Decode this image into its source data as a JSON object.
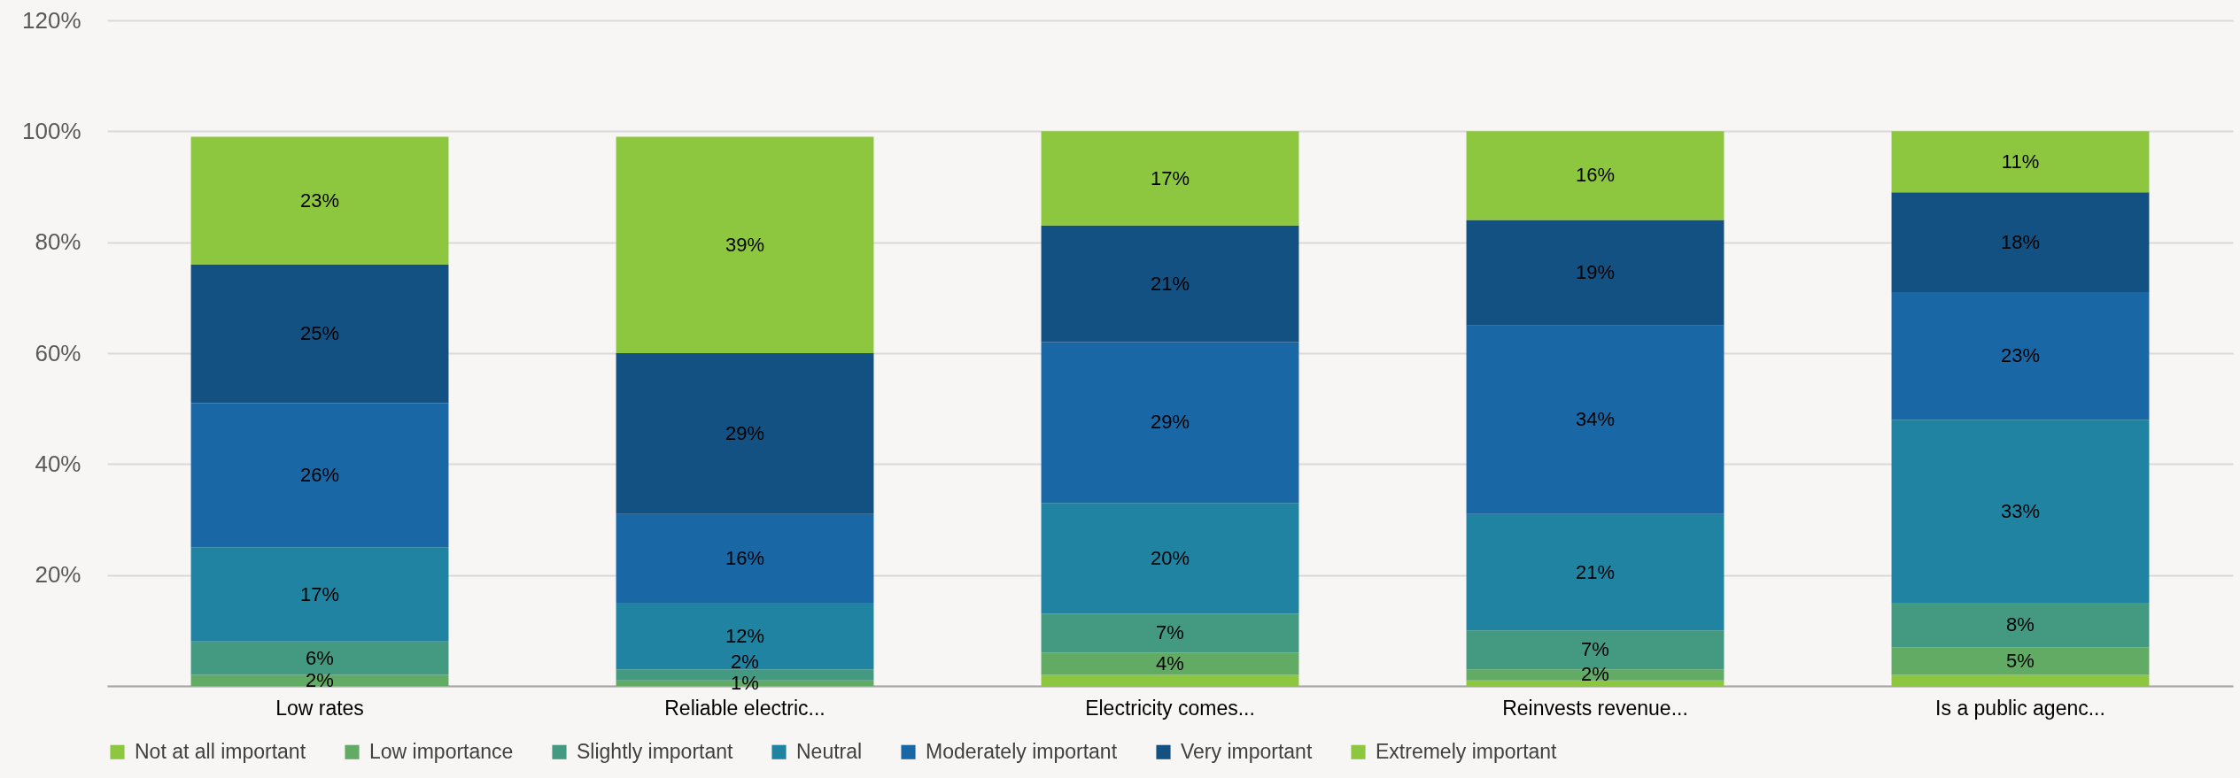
{
  "chart_data": {
    "type": "bar",
    "stacked": true,
    "categories": [
      "Low rates",
      "Reliable electric...",
      "Electricity comes...",
      "Reinvests revenue...",
      "Is a public agenc..."
    ],
    "series": [
      {
        "name": "Not at all important",
        "color": "#8dc63f",
        "values": [
          null,
          null,
          2,
          1,
          2
        ],
        "value_labels": [
          null,
          null,
          null,
          null,
          null
        ]
      },
      {
        "name": "Low importance",
        "color": "#62ab64",
        "values": [
          2,
          1,
          4,
          2,
          5
        ],
        "value_labels": [
          "2%",
          "1%",
          "4%",
          "2%",
          "5%"
        ]
      },
      {
        "name": "Slightly important",
        "color": "#439a80",
        "values": [
          6,
          2,
          7,
          7,
          8
        ],
        "value_labels": [
          "6%",
          "2%",
          "7%",
          "7%",
          "8%"
        ]
      },
      {
        "name": "Neutral",
        "color": "#1f83a1",
        "values": [
          17,
          12,
          20,
          21,
          33
        ],
        "value_labels": [
          "17%",
          "12%",
          "20%",
          "21%",
          "33%"
        ]
      },
      {
        "name": "Moderately important",
        "color": "#1a67a6",
        "values": [
          26,
          16,
          29,
          34,
          23
        ],
        "value_labels": [
          "26%",
          "16%",
          "29%",
          "34%",
          "23%"
        ]
      },
      {
        "name": "Very important",
        "color": "#145183",
        "values": [
          25,
          29,
          21,
          19,
          18
        ],
        "value_labels": [
          "25%",
          "29%",
          "21%",
          "19%",
          "18%"
        ]
      },
      {
        "name": "Extremely important",
        "color": "#8dc63f",
        "values": [
          23,
          39,
          17,
          16,
          11
        ],
        "value_labels": [
          "23%",
          "39%",
          "17%",
          "16%",
          "11%"
        ]
      }
    ],
    "ylim": [
      0,
      120
    ],
    "yticks": [
      {
        "value": 0,
        "label": null
      },
      {
        "value": 20,
        "label": "20%"
      },
      {
        "value": 40,
        "label": "40%"
      },
      {
        "value": 60,
        "label": "60%"
      },
      {
        "value": 80,
        "label": "80%"
      },
      {
        "value": 100,
        "label": "100%"
      },
      {
        "value": 120,
        "label": "120%"
      }
    ],
    "grid": "y",
    "legend": "bottom"
  }
}
